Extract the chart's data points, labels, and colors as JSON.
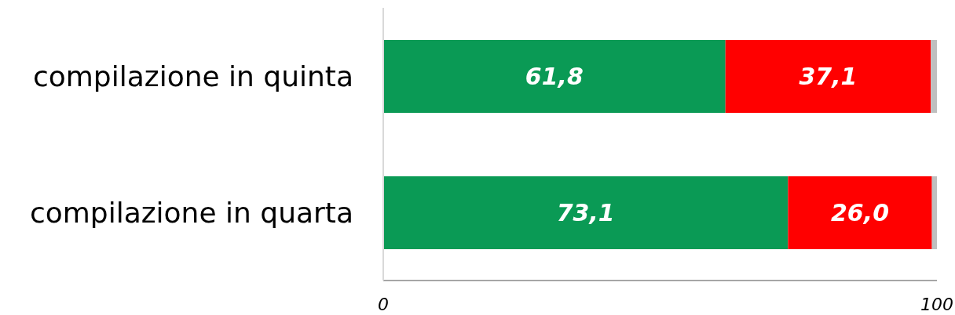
{
  "chart_data": {
    "type": "bar",
    "orientation": "horizontal",
    "stacked": true,
    "categories": [
      "compilazione in quinta",
      "compilazione in quarta"
    ],
    "series": [
      {
        "color": "#0a9a55",
        "values": [
          61.8,
          73.1
        ],
        "value_labels": [
          "61,8",
          "73,1"
        ]
      },
      {
        "color": "#ff0000",
        "values": [
          37.1,
          26.0
        ],
        "value_labels": [
          "37,1",
          "26,0"
        ]
      },
      {
        "color": "#bfbfbf",
        "values": [
          1.1,
          0.9
        ],
        "value_labels": [
          null,
          null
        ]
      }
    ],
    "xlim": [
      0,
      100
    ],
    "xticks": [
      0,
      100
    ],
    "grid": false,
    "legend": false
  }
}
